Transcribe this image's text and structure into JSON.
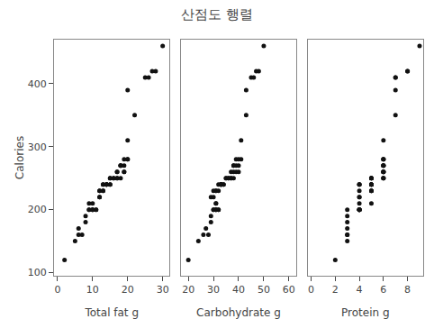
{
  "chart_data": [
    {
      "type": "scatter",
      "title": "산점도 행렬",
      "xlabel": "Total fat g",
      "ylabel": "Calories",
      "x": [
        2,
        9,
        6,
        13,
        14,
        5,
        7,
        9,
        10,
        17,
        8,
        15,
        18,
        13,
        10,
        11,
        8,
        9,
        10,
        6,
        10,
        11,
        14,
        15,
        16,
        17,
        17,
        19,
        20,
        18,
        18,
        12,
        12,
        12,
        12,
        13,
        13,
        14,
        15,
        14,
        15,
        16,
        17,
        18,
        19,
        19,
        19,
        20,
        22,
        20,
        20,
        28,
        25,
        26,
        27,
        30
      ],
      "values": [
        120,
        210,
        160,
        240,
        240,
        150,
        160,
        200,
        200,
        260,
        180,
        250,
        270,
        240,
        200,
        200,
        190,
        200,
        210,
        170,
        200,
        200,
        240,
        240,
        250,
        250,
        260,
        280,
        280,
        270,
        270,
        220,
        220,
        230,
        230,
        230,
        230,
        240,
        240,
        240,
        250,
        250,
        250,
        250,
        260,
        260,
        270,
        280,
        350,
        310,
        390,
        420,
        410,
        410,
        420,
        460
      ],
      "color": "#111111",
      "xlim": [
        -1,
        32
      ],
      "xticks": [
        0,
        10,
        20,
        30
      ],
      "ylim": [
        95,
        470
      ],
      "yticks": [
        100,
        200,
        300,
        400
      ],
      "grid": false
    },
    {
      "type": "scatter",
      "xlabel": "Carbohydrate g",
      "x": [
        20,
        31,
        26,
        33,
        33,
        24,
        28,
        31,
        32,
        38,
        29,
        35,
        38,
        32,
        31,
        32,
        29,
        30,
        31,
        27,
        30,
        31,
        33,
        34,
        36,
        37,
        37,
        39,
        40,
        38,
        39,
        29,
        30,
        30,
        31,
        31,
        32,
        33,
        34,
        33,
        35,
        36,
        37,
        38,
        39,
        40,
        40,
        41,
        43,
        41,
        43,
        48,
        45,
        46,
        47,
        50
      ],
      "values": [
        120,
        210,
        160,
        240,
        240,
        150,
        160,
        200,
        200,
        260,
        180,
        250,
        270,
        240,
        200,
        200,
        190,
        200,
        210,
        170,
        200,
        200,
        240,
        240,
        250,
        250,
        260,
        280,
        280,
        270,
        270,
        220,
        220,
        230,
        230,
        230,
        230,
        240,
        240,
        240,
        250,
        250,
        250,
        250,
        260,
        260,
        270,
        280,
        350,
        310,
        390,
        420,
        410,
        410,
        420,
        460
      ],
      "color": "#111111",
      "xlim": [
        17,
        63
      ],
      "xticks": [
        20,
        30,
        40,
        50,
        60
      ],
      "ylim": [
        95,
        470
      ],
      "yticks": [
        100,
        200,
        300,
        400
      ],
      "grid": false,
      "tick_labels": "x"
    },
    {
      "type": "scatter",
      "xlabel": "Protein g",
      "x": [
        2,
        5,
        3,
        4,
        5,
        3,
        3,
        4,
        4,
        6,
        3,
        5,
        6,
        4,
        4,
        4,
        3,
        4,
        4,
        3,
        3,
        4,
        4,
        5,
        5,
        6,
        6,
        6,
        6,
        6,
        6,
        4,
        4,
        4,
        5,
        5,
        5,
        5,
        5,
        5,
        5,
        5,
        6,
        6,
        6,
        6,
        6,
        6,
        7,
        6,
        7,
        8,
        7,
        7,
        8,
        9
      ],
      "values": [
        120,
        210,
        160,
        240,
        240,
        150,
        160,
        200,
        200,
        260,
        180,
        250,
        270,
        240,
        200,
        200,
        190,
        200,
        210,
        170,
        200,
        200,
        240,
        240,
        250,
        250,
        260,
        280,
        280,
        270,
        270,
        220,
        220,
        230,
        230,
        230,
        230,
        240,
        240,
        240,
        250,
        250,
        250,
        250,
        260,
        260,
        270,
        280,
        350,
        310,
        390,
        420,
        410,
        410,
        420,
        460
      ],
      "color": "#111111",
      "xlim": [
        -0.3,
        9.3
      ],
      "xticks": [
        0,
        2,
        4,
        6,
        8
      ],
      "ylim": [
        95,
        470
      ],
      "yticks": [
        100,
        200,
        300,
        400
      ],
      "grid": false,
      "tick_labels": "x"
    }
  ]
}
